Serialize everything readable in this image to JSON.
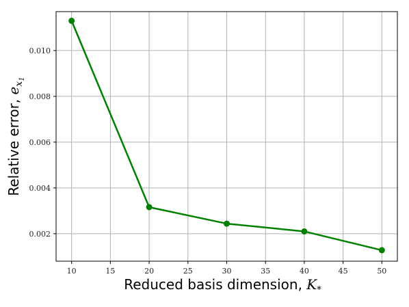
{
  "chart_data": {
    "type": "line",
    "title": "",
    "xlabel": "Reduced basis dimension, ",
    "xlabel_math": "K",
    "xlabel_math_sub": "*",
    "ylabel": "Relative error, ",
    "ylabel_math": "e",
    "ylabel_math_sub": "x",
    "ylabel_math_subsub": "1",
    "xlim": [
      8,
      52
    ],
    "ylim": [
      0.0008,
      0.0117
    ],
    "xticks": [
      10,
      15,
      20,
      25,
      30,
      35,
      40,
      45,
      50
    ],
    "xtick_labels": [
      "10",
      "15",
      "20",
      "25",
      "30",
      "35",
      "40",
      "45",
      "50"
    ],
    "yticks": [
      0.002,
      0.004,
      0.006,
      0.008,
      0.01
    ],
    "ytick_labels": [
      "0.002",
      "0.004",
      "0.006",
      "0.008",
      "0.010"
    ],
    "grid": true,
    "series": [
      {
        "color": "#008000",
        "marker": "circle",
        "x": [
          10,
          20,
          30,
          40,
          50
        ],
        "y": [
          0.0113,
          0.00316,
          0.00244,
          0.0021,
          0.00128
        ]
      }
    ]
  }
}
